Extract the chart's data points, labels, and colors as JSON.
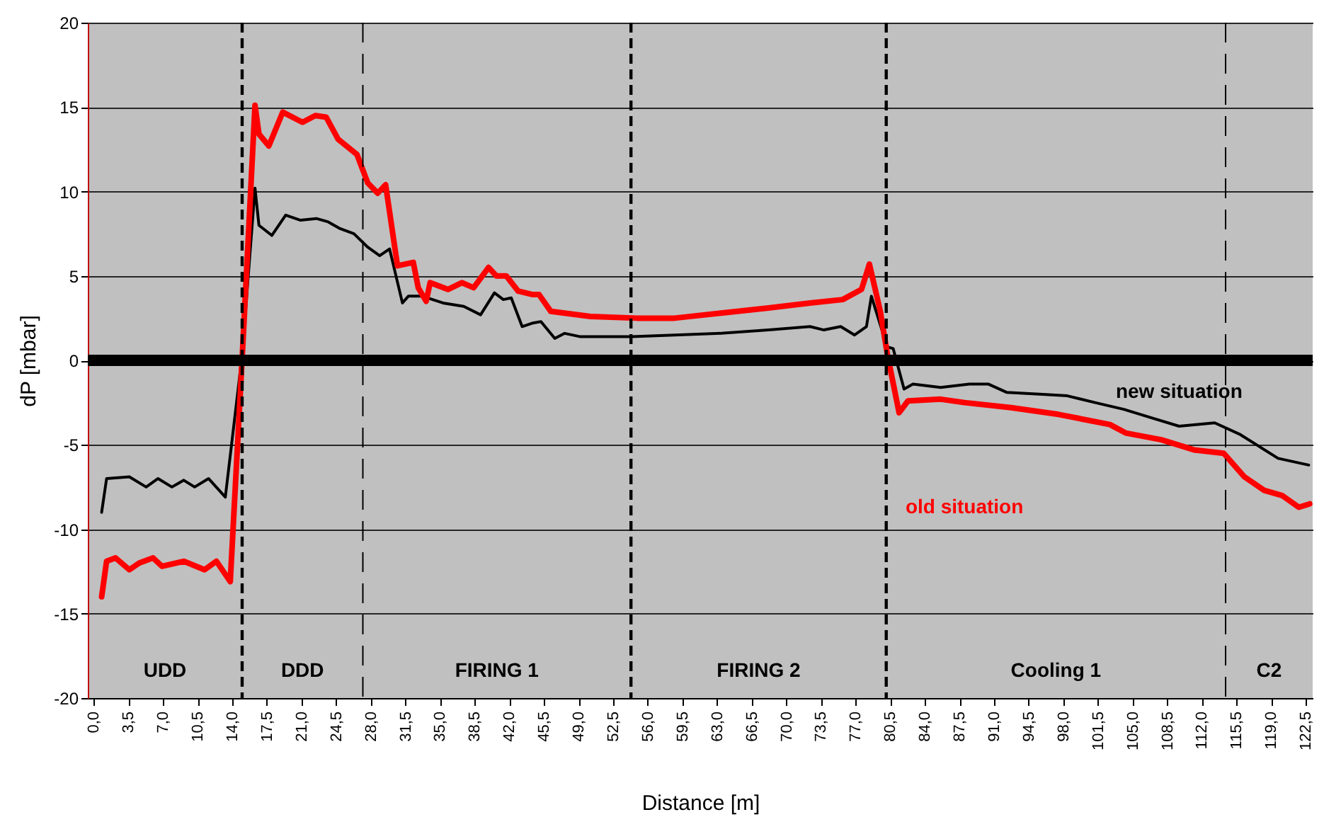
{
  "chart_data": {
    "type": "line",
    "xlabel": "Distance [m]",
    "ylabel": "dP [mbar]",
    "xlim": [
      -0.6,
      123.2
    ],
    "ylim": [
      -20,
      20
    ],
    "yticks": [
      -20,
      -15,
      -10,
      -5,
      0,
      5,
      10,
      15,
      20
    ],
    "xticks": [
      {
        "value": 0,
        "label": "0,0"
      },
      {
        "value": 3.5,
        "label": "3,5"
      },
      {
        "value": 7,
        "label": "7,0"
      },
      {
        "value": 10.5,
        "label": "10,5"
      },
      {
        "value": 14,
        "label": "14,0"
      },
      {
        "value": 17.5,
        "label": "17,5"
      },
      {
        "value": 21,
        "label": "21,0"
      },
      {
        "value": 24.5,
        "label": "24,5"
      },
      {
        "value": 28,
        "label": "28,0"
      },
      {
        "value": 31.5,
        "label": "31,5"
      },
      {
        "value": 35,
        "label": "35,0"
      },
      {
        "value": 38.5,
        "label": "38,5"
      },
      {
        "value": 42,
        "label": "42,0"
      },
      {
        "value": 45.5,
        "label": "45,5"
      },
      {
        "value": 49,
        "label": "49,0"
      },
      {
        "value": 52.5,
        "label": "52,5"
      },
      {
        "value": 56,
        "label": "56,0"
      },
      {
        "value": 59.5,
        "label": "59,5"
      },
      {
        "value": 63,
        "label": "63,0"
      },
      {
        "value": 66.5,
        "label": "66,5"
      },
      {
        "value": 70,
        "label": "70,0"
      },
      {
        "value": 73.5,
        "label": "73,5"
      },
      {
        "value": 77,
        "label": "77,0"
      },
      {
        "value": 80.5,
        "label": "80,5"
      },
      {
        "value": 84,
        "label": "84,0"
      },
      {
        "value": 87.5,
        "label": "87,5"
      },
      {
        "value": 91,
        "label": "91,0"
      },
      {
        "value": 94.5,
        "label": "94,5"
      },
      {
        "value": 98,
        "label": "98,0"
      },
      {
        "value": 101.5,
        "label": "101,5"
      },
      {
        "value": 105,
        "label": "105,0"
      },
      {
        "value": 108.5,
        "label": "108,5"
      },
      {
        "value": 112,
        "label": "112,0"
      },
      {
        "value": 115.5,
        "label": "115,5"
      },
      {
        "value": 119,
        "label": "119,0"
      },
      {
        "value": 122.5,
        "label": "122,5"
      }
    ],
    "grid": "y",
    "line_style": "solid",
    "marker": "none",
    "series": [
      {
        "name": "new situation",
        "color": "#000000",
        "x": [
          0.8,
          1.3,
          3.6,
          5.3,
          6.5,
          7.9,
          9.1,
          10.2,
          11.6,
          13.3,
          15.0,
          16.3,
          16.7,
          18.0,
          19.4,
          20.9,
          22.5,
          23.7,
          24.9,
          26.3,
          27.7,
          28.9,
          29.9,
          31.2,
          31.8,
          33.2,
          35.3,
          37.4,
          39.1,
          40.5,
          41.4,
          42.2,
          43.3,
          44.3,
          45.2,
          46.6,
          47.6,
          49.2,
          54.4,
          58.7,
          63.4,
          68.2,
          72.4,
          73.8,
          75.5,
          76.9,
          78.1,
          78.6,
          79.5,
          80.2,
          80.8,
          81.9,
          82.8,
          85.6,
          88.5,
          90.4,
          92.3,
          95.6,
          98.4,
          101.2,
          104.1,
          106.9,
          109.7,
          113.3,
          115.9,
          117.8,
          119.7,
          122.8
        ],
        "values": [
          -9.0,
          -7.0,
          -6.9,
          -7.5,
          -7.0,
          -7.5,
          -7.1,
          -7.5,
          -7.0,
          -8.1,
          0.3,
          10.2,
          8.0,
          7.4,
          8.6,
          8.3,
          8.4,
          8.2,
          7.8,
          7.5,
          6.7,
          6.2,
          6.6,
          3.4,
          3.8,
          3.8,
          3.4,
          3.2,
          2.7,
          4.0,
          3.6,
          3.7,
          2.0,
          2.2,
          2.3,
          1.3,
          1.6,
          1.4,
          1.4,
          1.5,
          1.6,
          1.8,
          2.0,
          1.8,
          2.0,
          1.5,
          2.0,
          3.8,
          2.1,
          0.8,
          0.7,
          -1.7,
          -1.4,
          -1.6,
          -1.4,
          -1.4,
          -1.9,
          -2.0,
          -2.1,
          -2.5,
          -2.9,
          -3.4,
          -3.9,
          -3.7,
          -4.4,
          -5.1,
          -5.8,
          -6.2
        ]
      },
      {
        "name": "old situation",
        "color": "#ff0000",
        "x": [
          0.8,
          1.3,
          2.2,
          3.6,
          4.6,
          6.0,
          6.9,
          9.1,
          11.2,
          12.4,
          13.8,
          15.0,
          16.3,
          16.7,
          17.7,
          19.1,
          21.1,
          22.4,
          23.5,
          24.7,
          26.6,
          27.7,
          28.7,
          29.5,
          30.7,
          32.3,
          32.8,
          33.6,
          34.0,
          35.8,
          37.2,
          38.4,
          39.9,
          40.7,
          41.7,
          42.9,
          44.3,
          45.0,
          46.2,
          50.2,
          54.9,
          58.7,
          63.4,
          68.2,
          72.4,
          75.7,
          77.6,
          78.4,
          79.5,
          80.2,
          81.4,
          82.3,
          85.6,
          88.0,
          92.7,
          97.5,
          102.7,
          104.3,
          107.9,
          111.2,
          114.2,
          116.3,
          118.3,
          120.1,
          121.8,
          122.9
        ],
        "values": [
          -14.0,
          -11.9,
          -11.7,
          -12.4,
          -12.0,
          -11.7,
          -12.2,
          -11.9,
          -12.4,
          -11.9,
          -13.1,
          0.1,
          15.1,
          13.4,
          12.7,
          14.7,
          14.1,
          14.5,
          14.4,
          13.1,
          12.2,
          10.5,
          9.9,
          10.4,
          5.6,
          5.8,
          4.3,
          3.5,
          4.6,
          4.2,
          4.6,
          4.3,
          5.5,
          5.0,
          5.0,
          4.1,
          3.9,
          3.9,
          2.9,
          2.6,
          2.5,
          2.5,
          2.8,
          3.1,
          3.4,
          3.6,
          4.2,
          5.7,
          2.9,
          0.4,
          -3.1,
          -2.4,
          -2.3,
          -2.5,
          -2.8,
          -3.2,
          -3.8,
          -4.3,
          -4.7,
          -5.3,
          -5.5,
          -6.9,
          -7.7,
          -8.0,
          -8.7,
          -8.5
        ]
      }
    ],
    "ref_lines": [
      {
        "axis": "y",
        "value": 0,
        "color": "#000000",
        "line_style": "solid"
      },
      {
        "axis": "x",
        "value": 15.0,
        "color": "#000000",
        "line_style": "dashed"
      },
      {
        "axis": "x",
        "value": 27.2,
        "color": "#000000",
        "line_style": "dashed"
      },
      {
        "axis": "x",
        "value": 54.3,
        "color": "#000000",
        "line_style": "dashed"
      },
      {
        "axis": "x",
        "value": 80.1,
        "color": "#000000",
        "line_style": "dashed"
      },
      {
        "axis": "x",
        "value": 114.4,
        "color": "#000000",
        "line_style": "dashed"
      }
    ],
    "annotations": [
      "UDD",
      "DDD",
      "FIRING 1",
      "FIRING 2",
      "Cooling 1",
      "C2"
    ]
  }
}
